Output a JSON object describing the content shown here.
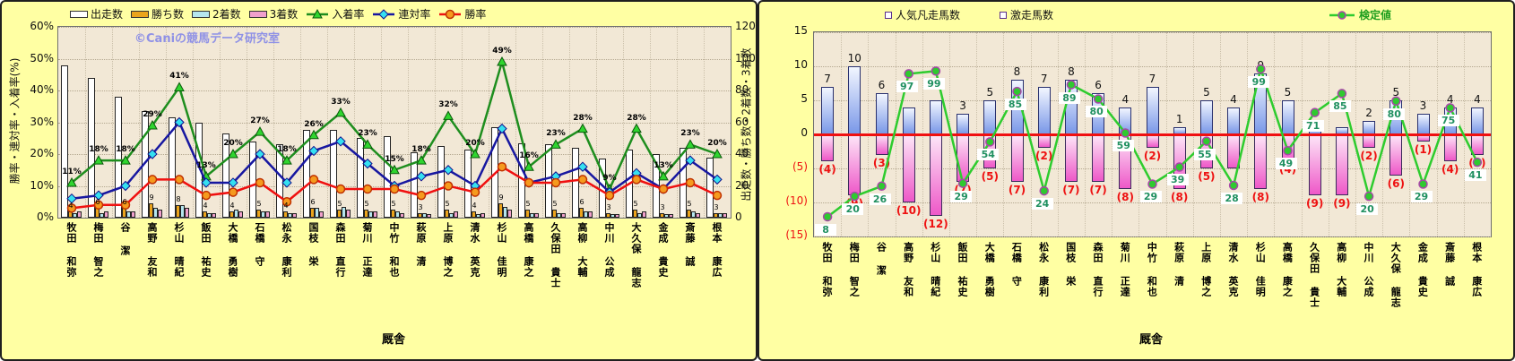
{
  "watermark": "©Caniの競馬データ研究室",
  "categories": [
    "牧田 和弥",
    "梅田 智之",
    "谷 潔",
    "高野 友和",
    "杉山 晴紀",
    "飯田 祐史",
    "大橋 勇樹",
    "石橋 守",
    "松永 康利",
    "国枝 栄",
    "森田 直行",
    "菊川 正達",
    "中竹 和也",
    "萩原 清",
    "上原 博之",
    "清水 英克",
    "杉山 佳明",
    "高橋 康之",
    "久保田 貴士",
    "高柳 大輔",
    "中川 公成",
    "大久保 龍志",
    "金成 貴史",
    "斎藤 誠",
    "根本 康広"
  ],
  "chart_data": [
    {
      "type": "bar+line",
      "title": "",
      "xlabel": "厩舎",
      "ylabel_left": "勝率・連対率・入着率(%)",
      "ylabel_right": "出走数・勝ち数・2着数・3着数",
      "ylim_left_pct": [
        0,
        60
      ],
      "ylim_right": [
        0,
        120
      ],
      "yticks_left": [
        "60%",
        "50%",
        "40%",
        "30%",
        "20%",
        "10%",
        "0%"
      ],
      "yticks_right": [
        "120",
        "100",
        "80",
        "60",
        "40",
        "20",
        "0"
      ],
      "grid": true,
      "legend_position": "top",
      "categories": [
        "牧田 和弥",
        "梅田 智之",
        "谷 潔",
        "高野 友和",
        "杉山 晴紀",
        "飯田 祐史",
        "大橋 勇樹",
        "石橋 守",
        "松永 康利",
        "国枝 栄",
        "森田 直行",
        "菊川 正達",
        "中竹 和也",
        "萩原 清",
        "上原 博之",
        "清水 英克",
        "杉山 佳明",
        "高橋 康之",
        "久保田 貴士",
        "高柳 大輔",
        "中川 公成",
        "大久保 龍志",
        "金成 貴史",
        "斎藤 誠",
        "根本 康広"
      ],
      "series": [
        {
          "name": "出走数",
          "type": "bar",
          "axis": "right",
          "color": "#FFFFFF",
          "values": [
            96,
            88,
            76,
            67,
            63,
            60,
            53,
            48,
            46,
            55,
            55,
            50,
            51,
            41,
            45,
            43,
            57,
            47,
            46,
            44,
            37,
            43,
            40,
            44,
            38
          ]
        },
        {
          "name": "勝ち数",
          "type": "bar",
          "axis": "right",
          "color": "#EBA41C",
          "show_labels": true,
          "values": [
            4,
            6,
            6,
            9,
            8,
            4,
            4,
            5,
            4,
            6,
            5,
            5,
            5,
            3,
            5,
            4,
            9,
            5,
            5,
            6,
            3,
            5,
            3,
            5,
            3
          ]
        },
        {
          "name": "2着数",
          "type": "bar",
          "axis": "right",
          "color": "#B5E6EE",
          "values": [
            3,
            3,
            4,
            6,
            8,
            3,
            5,
            4,
            3,
            6,
            7,
            4,
            4,
            3,
            3,
            2,
            7,
            3,
            3,
            4,
            2,
            3,
            2,
            4,
            3
          ]
        },
        {
          "name": "3着数",
          "type": "bar",
          "axis": "right",
          "color": "#F0A0CC",
          "values": [
            4,
            4,
            4,
            5,
            6,
            3,
            4,
            4,
            3,
            4,
            5,
            4,
            3,
            2,
            4,
            3,
            5,
            3,
            3,
            4,
            2,
            4,
            2,
            3,
            3
          ]
        },
        {
          "name": "入着率",
          "type": "line",
          "marker": "triangle",
          "line_color": "#1E8E1E",
          "marker_fill": "#2FD52F",
          "marker_stroke": "#0A570A",
          "values_pct": [
            11,
            18,
            18,
            29,
            41,
            13,
            20,
            27,
            18,
            26,
            33,
            23,
            15,
            18,
            32,
            20,
            49,
            16,
            23,
            28,
            9,
            28,
            13,
            23,
            20
          ],
          "labels": [
            "11%",
            "18%",
            "18%",
            "29%",
            "41%",
            "13%",
            "20%",
            "27%",
            "18%",
            "26%",
            "33%",
            "23%",
            "15%",
            "18%",
            "32%",
            "20%",
            "49%",
            "16%",
            "23%",
            "28%",
            "9%",
            "28%",
            "13%",
            "23%",
            "20%"
          ]
        },
        {
          "name": "連対率",
          "type": "line",
          "marker": "diamond",
          "line_color": "#1717A0",
          "marker_fill": "#35E0F0",
          "marker_stroke": "#10108C",
          "values_pct": [
            6,
            7,
            10,
            20,
            30,
            11,
            11,
            20,
            11,
            21,
            24,
            17,
            10,
            13,
            15,
            10,
            28,
            11,
            13,
            16,
            8,
            14,
            9,
            18,
            12
          ]
        },
        {
          "name": "勝率",
          "type": "line",
          "marker": "circle",
          "line_color": "#F01010",
          "marker_fill": "#F59A1E",
          "marker_stroke": "#C03000",
          "values_pct": [
            3,
            4,
            4,
            12,
            12,
            7,
            8,
            11,
            5,
            12,
            9,
            9,
            9,
            7,
            10,
            8,
            16,
            11,
            11,
            12,
            7,
            12,
            9,
            11,
            7
          ]
        }
      ]
    },
    {
      "type": "bar+line",
      "title": "",
      "xlabel": "厩舎",
      "ylim": [
        -15,
        15
      ],
      "yticks": [
        "15",
        "10",
        "5",
        "0",
        "(5)",
        "(10)",
        "(15)"
      ],
      "zero_line_color": "#F01010",
      "grid": true,
      "categories": [
        "牧田 和弥",
        "梅田 智之",
        "谷 潔",
        "高野 友和",
        "杉山 晴紀",
        "飯田 祐史",
        "大橋 勇樹",
        "石橋 守",
        "松永 康利",
        "国枝 栄",
        "森田 直行",
        "菊川 正達",
        "中竹 和也",
        "萩原 清",
        "上原 博之",
        "清水 英克",
        "杉山 佳明",
        "高橋 康之",
        "久保田 貴士",
        "高柳 大輔",
        "中川 公成",
        "大久保 龍志",
        "金成 貴史",
        "斎藤 誠",
        "根本 康広"
      ],
      "series": [
        {
          "name": "人気凡走馬数",
          "type": "bar",
          "direction": "up",
          "values": [
            7,
            10,
            6,
            4,
            5,
            3,
            5,
            8,
            7,
            8,
            6,
            4,
            7,
            1,
            5,
            4,
            9,
            5,
            1,
            1,
            2,
            5,
            3,
            4,
            4
          ],
          "labels": [
            "7",
            "10",
            "6",
            null,
            null,
            "3",
            "5",
            "8",
            "7",
            "8",
            "6",
            "4",
            "7",
            "1",
            "5",
            "4",
            "9",
            "5",
            null,
            null,
            "2",
            "5",
            "3",
            "4",
            "4"
          ]
        },
        {
          "name": "激走馬数",
          "type": "bar",
          "direction": "down",
          "values": [
            4,
            9,
            3,
            10,
            12,
            7,
            5,
            7,
            2,
            7,
            7,
            8,
            2,
            8,
            5,
            5,
            8,
            4,
            9,
            9,
            2,
            6,
            1,
            4,
            3
          ],
          "labels": [
            "(4)",
            "(9)",
            "(3)",
            "(10)",
            "(12)",
            "(7)",
            "(5)",
            "(7)",
            "(2)",
            "(7)",
            "(7)",
            "(8)",
            "(2)",
            "(8)",
            "(5)",
            null,
            "(8)",
            "(4)",
            "(9)",
            "(9)",
            "(2)",
            "(6)",
            "(1)",
            "(4)",
            "(3)"
          ]
        },
        {
          "name": "検定値",
          "type": "line",
          "marker": "circle",
          "line_color": "#2ECC2E",
          "marker_fill": "#2FC92F",
          "marker_stroke": "#A846A8",
          "values": [
            8,
            20,
            26,
            97,
            99,
            29,
            54,
            85,
            24,
            89,
            80,
            59,
            29,
            39,
            55,
            28,
            99,
            49,
            71,
            85,
            20,
            80,
            29,
            75,
            41
          ],
          "labels": [
            "8",
            "20",
            "26",
            "97",
            "99",
            "29",
            "54",
            "85",
            "24",
            "89",
            "80",
            "59",
            "29",
            "39",
            "55",
            "28",
            "99",
            "49",
            "71",
            "85",
            "20",
            "80",
            "29",
            "75",
            "41"
          ],
          "plot_y": [
            -12.1,
            -9.1,
            -7.6,
            8.9,
            9.3,
            -7.2,
            -1.1,
            6.3,
            -8.3,
            7.3,
            5.2,
            0.2,
            -7.3,
            -4.8,
            -1.0,
            -7.5,
            9.6,
            -2.4,
            3.2,
            6.0,
            -9.1,
            4.9,
            -7.3,
            3.9,
            -4.1
          ]
        }
      ]
    }
  ]
}
